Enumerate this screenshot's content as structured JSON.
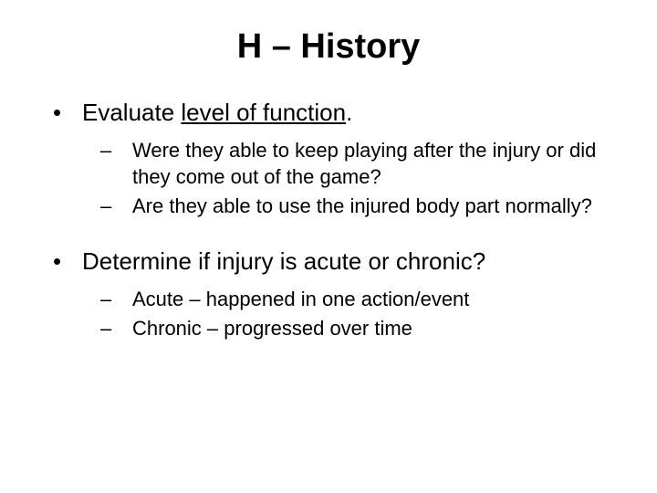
{
  "title": "H – History",
  "items": [
    {
      "text_prefix": "Evaluate ",
      "text_underlined": "level of function",
      "text_suffix": ".",
      "sub": [
        "Were they able to keep playing after the injury or did they come out of the game?",
        "Are they able to use the injured body part normally?"
      ]
    },
    {
      "text_prefix": "Determine if injury is acute or chronic?",
      "text_underlined": "",
      "text_suffix": "",
      "sub": [
        "Acute – happened in one action/event",
        "Chronic – progressed over time"
      ]
    }
  ],
  "colors": {
    "background": "#ffffff",
    "text": "#000000"
  },
  "fonts": {
    "title_size": 38,
    "main_size": 26,
    "sub_size": 22
  }
}
